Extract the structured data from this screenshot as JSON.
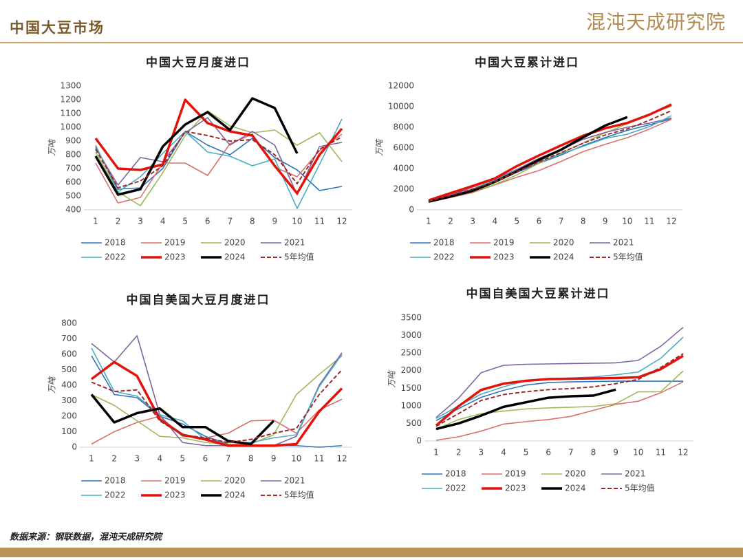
{
  "header": {
    "title": "中国大豆市场",
    "logo": "混沌天成研究院"
  },
  "source": "数据来源：钢联数据，混沌天成研究院",
  "chart_data": [
    {
      "type": "line",
      "title": "中国大豆月度进口",
      "y_label": "万吨",
      "categories": [
        "1",
        "2",
        "3",
        "4",
        "5",
        "6",
        "7",
        "8",
        "9",
        "10",
        "11",
        "12"
      ],
      "ylim": [
        400,
        1300
      ],
      "yticks": [
        400,
        500,
        600,
        700,
        800,
        900,
        1000,
        1100,
        1200,
        1300
      ],
      "series": [
        {
          "name": "2018",
          "color": "#2e75b6",
          "style": "solid",
          "values": [
            860,
            550,
            560,
            700,
            970,
            870,
            800,
            920,
            780,
            690,
            540,
            570
          ]
        },
        {
          "name": "2019",
          "color": "#d9716b",
          "style": "solid",
          "values": [
            740,
            450,
            490,
            740,
            740,
            650,
            880,
            950,
            710,
            640,
            830,
            950
          ]
        },
        {
          "name": "2020",
          "color": "#9bbb59",
          "style": "solid",
          "values": [
            820,
            530,
            430,
            670,
            940,
            1120,
            1010,
            960,
            980,
            870,
            960,
            750
          ]
        },
        {
          "name": "2021",
          "color": "#8064a2",
          "style": "solid",
          "values": [
            850,
            580,
            780,
            750,
            960,
            1070,
            870,
            970,
            870,
            510,
            860,
            890
          ]
        },
        {
          "name": "2022",
          "color": "#4bacc6",
          "style": "solid",
          "values": [
            870,
            530,
            640,
            810,
            970,
            820,
            790,
            720,
            770,
            410,
            730,
            1060
          ]
        },
        {
          "name": "2023",
          "color": "#e3120b",
          "style": "bold",
          "values": [
            920,
            700,
            690,
            730,
            1200,
            1030,
            970,
            940,
            720,
            520,
            800,
            990
          ]
        },
        {
          "name": "2024",
          "color": "#000000",
          "style": "bold",
          "values": [
            790,
            510,
            550,
            860,
            1020,
            1110,
            980,
            1210,
            1140,
            810,
            null,
            null
          ]
        },
        {
          "name": "5年均值",
          "color": "#9e2a2b",
          "style": "dashed",
          "values": [
            840,
            560,
            610,
            720,
            970,
            940,
            900,
            910,
            800,
            590,
            840,
            930
          ]
        }
      ]
    },
    {
      "type": "line",
      "title": "中国大豆累计进口",
      "y_label": "万吨",
      "categories": [
        "1",
        "2",
        "3",
        "4",
        "5",
        "6",
        "7",
        "8",
        "9",
        "10",
        "11",
        "12"
      ],
      "ylim": [
        0,
        12000
      ],
      "yticks": [
        0,
        2000,
        4000,
        6000,
        8000,
        10000,
        12000
      ],
      "series": [
        {
          "name": "2018",
          "color": "#2e75b6",
          "style": "solid",
          "values": [
            860,
            1410,
            1970,
            2670,
            3640,
            4510,
            5310,
            6230,
            7010,
            7700,
            8240,
            8810
          ]
        },
        {
          "name": "2019",
          "color": "#d9716b",
          "style": "solid",
          "values": [
            740,
            1190,
            1680,
            2420,
            3160,
            3810,
            4690,
            5640,
            6350,
            6990,
            7820,
            8770
          ]
        },
        {
          "name": "2020",
          "color": "#9bbb59",
          "style": "solid",
          "values": [
            820,
            1350,
            1780,
            2450,
            3390,
            4510,
            5520,
            6480,
            7460,
            8330,
            9290,
            10040
          ]
        },
        {
          "name": "2021",
          "color": "#8064a2",
          "style": "solid",
          "values": [
            850,
            1430,
            2210,
            2960,
            3920,
            4990,
            5860,
            6830,
            7500,
            8010,
            8400,
            8900
          ]
        },
        {
          "name": "2022",
          "color": "#4bacc6",
          "style": "solid",
          "values": [
            870,
            1400,
            2040,
            2850,
            3820,
            4640,
            5430,
            6150,
            6920,
            7330,
            8060,
            9120
          ]
        },
        {
          "name": "2023",
          "color": "#e3120b",
          "style": "bold",
          "values": [
            920,
            1620,
            2310,
            3040,
            4240,
            5270,
            6240,
            7180,
            7900,
            8420,
            9220,
            10210
          ]
        },
        {
          "name": "2024",
          "color": "#000000",
          "style": "bold",
          "values": [
            790,
            1300,
            1850,
            2710,
            3730,
            4840,
            5820,
            7030,
            8170,
            8980,
            null,
            null
          ]
        },
        {
          "name": "5年均值",
          "color": "#9e2a2b",
          "style": "dashed",
          "values": [
            840,
            1400,
            2010,
            2730,
            3700,
            4640,
            5540,
            6450,
            7250,
            7840,
            8680,
            9610
          ]
        }
      ]
    },
    {
      "type": "line",
      "title": "中国自美国大豆月度进口",
      "y_label": "万吨",
      "categories": [
        "1",
        "2",
        "3",
        "4",
        "5",
        "6",
        "7",
        "8",
        "9",
        "10",
        "11",
        "12"
      ],
      "ylim": [
        0,
        800
      ],
      "yticks": [
        0,
        100,
        200,
        300,
        400,
        500,
        600,
        700,
        800
      ],
      "series": [
        {
          "name": "2018",
          "color": "#2e75b6",
          "style": "solid",
          "values": [
            590,
            340,
            320,
            200,
            150,
            70,
            20,
            10,
            10,
            10,
            0,
            10
          ]
        },
        {
          "name": "2019",
          "color": "#d9716b",
          "style": "solid",
          "values": [
            20,
            100,
            160,
            200,
            70,
            60,
            90,
            170,
            175,
            90,
            240,
            310
          ]
        },
        {
          "name": "2020",
          "color": "#9bbb59",
          "style": "solid",
          "values": [
            340,
            270,
            170,
            70,
            60,
            30,
            20,
            20,
            80,
            340,
            470,
            590
          ]
        },
        {
          "name": "2021",
          "color": "#8064a2",
          "style": "solid",
          "values": [
            670,
            550,
            720,
            210,
            30,
            10,
            10,
            10,
            10,
            70,
            400,
            610
          ]
        },
        {
          "name": "2022",
          "color": "#4bacc6",
          "style": "solid",
          "values": [
            640,
            360,
            330,
            210,
            170,
            50,
            30,
            30,
            60,
            80,
            390,
            600
          ]
        },
        {
          "name": "2023",
          "color": "#e3120b",
          "style": "bold",
          "values": [
            440,
            550,
            460,
            180,
            80,
            50,
            10,
            10,
            10,
            20,
            230,
            380
          ]
        },
        {
          "name": "2024",
          "color": "#000000",
          "style": "bold",
          "values": [
            340,
            160,
            220,
            250,
            130,
            130,
            40,
            20,
            170,
            null,
            null,
            null
          ]
        },
        {
          "name": "5年均值",
          "color": "#9e2a2b",
          "style": "dashed",
          "values": [
            420,
            360,
            370,
            170,
            80,
            60,
            30,
            50,
            90,
            120,
            340,
            500
          ]
        }
      ]
    },
    {
      "type": "line",
      "title": "中国自美国大豆累计进口",
      "y_label": "万吨",
      "categories": [
        "1",
        "2",
        "3",
        "4",
        "5",
        "6",
        "7",
        "8",
        "9",
        "10",
        "11",
        "12"
      ],
      "ylim": [
        0,
        3500
      ],
      "yticks": [
        0,
        500,
        1000,
        1500,
        2000,
        2500,
        3000,
        3500
      ],
      "series": [
        {
          "name": "2018",
          "color": "#2e75b6",
          "style": "solid",
          "values": [
            580,
            920,
            1240,
            1440,
            1590,
            1660,
            1680,
            1690,
            1700,
            1700,
            1700,
            1700
          ]
        },
        {
          "name": "2019",
          "color": "#d9716b",
          "style": "solid",
          "values": [
            20,
            120,
            280,
            480,
            550,
            610,
            700,
            870,
            1040,
            1130,
            1370,
            1680
          ]
        },
        {
          "name": "2020",
          "color": "#9bbb59",
          "style": "solid",
          "values": [
            340,
            610,
            780,
            850,
            910,
            940,
            960,
            980,
            1060,
            1400,
            1400,
            1990
          ]
        },
        {
          "name": "2021",
          "color": "#8064a2",
          "style": "solid",
          "values": [
            670,
            1220,
            1940,
            2150,
            2180,
            2190,
            2200,
            2210,
            2220,
            2290,
            2690,
            3230
          ]
        },
        {
          "name": "2022",
          "color": "#4bacc6",
          "style": "solid",
          "values": [
            640,
            1000,
            1330,
            1540,
            1710,
            1760,
            1790,
            1820,
            1880,
            1960,
            2350,
            2950
          ]
        },
        {
          "name": "2023",
          "color": "#e3120b",
          "style": "bold",
          "values": [
            440,
            990,
            1450,
            1630,
            1710,
            1760,
            1770,
            1780,
            1790,
            1810,
            2040,
            2420
          ]
        },
        {
          "name": "2024",
          "color": "#000000",
          "style": "bold",
          "values": [
            340,
            500,
            720,
            970,
            1100,
            1230,
            1270,
            1290,
            1460,
            null,
            null,
            null
          ]
        },
        {
          "name": "5年均值",
          "color": "#9e2a2b",
          "style": "dashed",
          "values": [
            420,
            780,
            1150,
            1320,
            1400,
            1460,
            1490,
            1540,
            1630,
            1750,
            2090,
            2480
          ]
        }
      ]
    }
  ]
}
